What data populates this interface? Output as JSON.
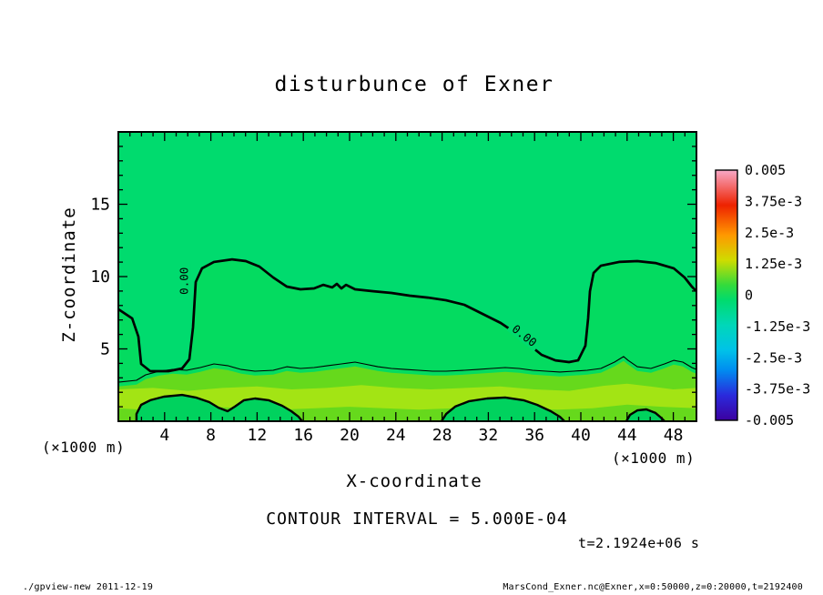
{
  "title": "disturbunce of Exner",
  "axes": {
    "x_label": "X-coordinate",
    "y_label": "Z-coordinate",
    "x_unit": "(×1000 m)",
    "y_unit": "(×1000 m)"
  },
  "annotations": {
    "contour_interval": "CONTOUR INTERVAL = 5.000E-04",
    "time_label": "t=2.1924e+06 s"
  },
  "footer": {
    "left": "./gpview-new  2011-12-19",
    "right": "MarsCond_Exner.nc@Exner,x=0:50000,z=0:20000,t=2192400"
  },
  "colorbar": {
    "labels": [
      "0.005",
      "3.75e-3",
      "2.5e-3",
      "1.25e-3",
      "0",
      "-1.25e-3",
      "-2.5e-3",
      "-3.75e-3",
      "-0.005"
    ],
    "gradient": [
      {
        "o": 0,
        "c": "#F8A9C8"
      },
      {
        "o": 0.14,
        "c": "#EE2200"
      },
      {
        "o": 0.26,
        "c": "#FF9900"
      },
      {
        "o": 0.36,
        "c": "#CFDC00"
      },
      {
        "o": 0.46,
        "c": "#33DB3C"
      },
      {
        "o": 0.52,
        "c": "#00DB6E"
      },
      {
        "o": 0.62,
        "c": "#00D7B9"
      },
      {
        "o": 0.72,
        "c": "#00C2E8"
      },
      {
        "o": 0.8,
        "c": "#008CF0"
      },
      {
        "o": 0.9,
        "c": "#2A2ADC"
      },
      {
        "o": 1,
        "c": "#3C00A0"
      }
    ]
  },
  "chart_data": {
    "type": "contour",
    "title": "disturbunce of Exner",
    "xlabel": "X-coordinate",
    "ylabel": "Z-coordinate",
    "x_unit": "(×1000 m)",
    "y_unit": "(×1000 m)",
    "x_range": [
      0,
      50
    ],
    "y_range": [
      0,
      20
    ],
    "x_ticks": [
      4,
      8,
      12,
      16,
      20,
      24,
      28,
      32,
      36,
      40,
      44,
      48
    ],
    "y_ticks": [
      5,
      10,
      15
    ],
    "field_range": [
      -0.005,
      0.005
    ],
    "contour_interval": 0.0005,
    "shade_levels": [
      -0.005,
      -0.00375,
      -0.0025,
      -0.00125,
      0,
      0.00125,
      0.0025,
      0.00375,
      0.005
    ],
    "time": "t=2.1924e+06 s",
    "fills": {
      "base": "#00DB6E",
      "below_zero": "#04DB60",
      "band1": "#66D91C",
      "band2": "#A3E414",
      "blob": "#00D25E"
    },
    "zero_contour": [
      [
        0,
        7.74
      ],
      [
        1.2,
        7.11
      ],
      [
        1.73,
        5.85
      ],
      [
        1.97,
        3.96
      ],
      [
        2.76,
        3.46
      ],
      [
        4.33,
        3.46
      ],
      [
        5.51,
        3.65
      ],
      [
        6.14,
        4.28
      ],
      [
        6.46,
        6.48
      ],
      [
        6.69,
        9.62
      ],
      [
        7.24,
        10.57
      ],
      [
        8.27,
        11.01
      ],
      [
        9.84,
        11.19
      ],
      [
        11.02,
        11.07
      ],
      [
        12.2,
        10.69
      ],
      [
        13.39,
        9.94
      ],
      [
        14.57,
        9.31
      ],
      [
        15.75,
        9.12
      ],
      [
        16.93,
        9.18
      ],
      [
        17.72,
        9.43
      ],
      [
        18.5,
        9.25
      ],
      [
        18.9,
        9.5
      ],
      [
        19.29,
        9.18
      ],
      [
        19.69,
        9.43
      ],
      [
        20.47,
        9.12
      ],
      [
        22.05,
        8.99
      ],
      [
        23.62,
        8.87
      ],
      [
        25.2,
        8.68
      ],
      [
        26.77,
        8.55
      ],
      [
        28.35,
        8.36
      ],
      [
        29.92,
        8.05
      ],
      [
        31.5,
        7.42
      ],
      [
        33.07,
        6.79
      ],
      [
        34.25,
        6.16
      ],
      [
        35.43,
        5.35
      ],
      [
        36.61,
        4.59
      ],
      [
        37.8,
        4.21
      ],
      [
        38.98,
        4.09
      ],
      [
        39.76,
        4.21
      ],
      [
        40.39,
        5.22
      ],
      [
        40.63,
        7.11
      ],
      [
        40.79,
        8.99
      ],
      [
        41.1,
        10.25
      ],
      [
        41.73,
        10.75
      ],
      [
        43.31,
        11.01
      ],
      [
        44.88,
        11.07
      ],
      [
        46.46,
        10.94
      ],
      [
        48.03,
        10.57
      ],
      [
        48.98,
        9.94
      ],
      [
        49.6,
        9.31
      ],
      [
        50,
        8.99
      ]
    ],
    "thin_contour": [
      [
        0,
        2.7
      ],
      [
        1.57,
        2.83
      ],
      [
        2.36,
        3.21
      ],
      [
        3.54,
        3.46
      ],
      [
        4.72,
        3.58
      ],
      [
        5.91,
        3.52
      ],
      [
        7.09,
        3.71
      ],
      [
        8.27,
        3.96
      ],
      [
        9.45,
        3.84
      ],
      [
        10.63,
        3.58
      ],
      [
        11.81,
        3.46
      ],
      [
        13.39,
        3.52
      ],
      [
        14.57,
        3.77
      ],
      [
        15.75,
        3.65
      ],
      [
        16.93,
        3.71
      ],
      [
        18.11,
        3.84
      ],
      [
        19.29,
        3.96
      ],
      [
        20.47,
        4.09
      ],
      [
        21.26,
        3.96
      ],
      [
        22.44,
        3.77
      ],
      [
        23.62,
        3.65
      ],
      [
        24.8,
        3.58
      ],
      [
        25.98,
        3.52
      ],
      [
        27.17,
        3.46
      ],
      [
        28.35,
        3.46
      ],
      [
        29.92,
        3.52
      ],
      [
        31.1,
        3.58
      ],
      [
        32.28,
        3.65
      ],
      [
        33.46,
        3.71
      ],
      [
        34.65,
        3.65
      ],
      [
        35.83,
        3.52
      ],
      [
        37.01,
        3.46
      ],
      [
        38.19,
        3.4
      ],
      [
        39.37,
        3.46
      ],
      [
        40.55,
        3.52
      ],
      [
        41.73,
        3.65
      ],
      [
        42.91,
        4.09
      ],
      [
        43.7,
        4.47
      ],
      [
        44.09,
        4.21
      ],
      [
        44.88,
        3.77
      ],
      [
        46.06,
        3.65
      ],
      [
        47.24,
        3.96
      ],
      [
        48.03,
        4.21
      ],
      [
        48.82,
        4.09
      ],
      [
        49.61,
        3.71
      ],
      [
        50,
        3.58
      ]
    ],
    "band2_top": [
      [
        0,
        2.2
      ],
      [
        3,
        2.3
      ],
      [
        6,
        2.1
      ],
      [
        9,
        2.3
      ],
      [
        12,
        2.4
      ],
      [
        15,
        2.2
      ],
      [
        18,
        2.3
      ],
      [
        21,
        2.5
      ],
      [
        24,
        2.3
      ],
      [
        27,
        2.2
      ],
      [
        30,
        2.3
      ],
      [
        33,
        2.4
      ],
      [
        36,
        2.2
      ],
      [
        39,
        2.1
      ],
      [
        42,
        2.45
      ],
      [
        44,
        2.6
      ],
      [
        46,
        2.4
      ],
      [
        48,
        2.2
      ],
      [
        50,
        2.3
      ]
    ],
    "band2_bottom": [
      [
        50,
        0.9
      ],
      [
        47,
        1.0
      ],
      [
        44,
        1.15
      ],
      [
        41,
        0.9
      ],
      [
        38,
        0.8
      ],
      [
        35,
        0.9
      ],
      [
        32,
        1.0
      ],
      [
        29,
        0.9
      ],
      [
        26,
        0.8
      ],
      [
        23,
        0.9
      ],
      [
        20,
        1.0
      ],
      [
        17,
        0.9
      ],
      [
        14,
        0.8
      ],
      [
        11,
        0.9
      ],
      [
        8,
        1.0
      ],
      [
        5,
        0.9
      ],
      [
        2,
        0.8
      ],
      [
        0,
        0.9
      ]
    ],
    "blobs": [
      [
        [
          1.57,
          0
        ],
        [
          1.57,
          0.5
        ],
        [
          1.97,
          1.13
        ],
        [
          2.76,
          1.45
        ],
        [
          3.94,
          1.7
        ],
        [
          5.51,
          1.82
        ],
        [
          6.69,
          1.64
        ],
        [
          7.87,
          1.32
        ],
        [
          8.66,
          0.94
        ],
        [
          9.45,
          0.69
        ],
        [
          10.08,
          1.01
        ],
        [
          10.87,
          1.45
        ],
        [
          11.81,
          1.57
        ],
        [
          12.99,
          1.45
        ],
        [
          14.17,
          1.07
        ],
        [
          14.96,
          0.69
        ],
        [
          15.59,
          0.31
        ],
        [
          15.9,
          0
        ]
      ],
      [
        [
          27.95,
          0
        ],
        [
          28.35,
          0.5
        ],
        [
          29.13,
          1.01
        ],
        [
          30.31,
          1.38
        ],
        [
          31.89,
          1.57
        ],
        [
          33.46,
          1.64
        ],
        [
          35.04,
          1.45
        ],
        [
          36.22,
          1.13
        ],
        [
          37.4,
          0.69
        ],
        [
          38.19,
          0.31
        ],
        [
          38.58,
          0
        ]
      ],
      [
        [
          43.94,
          0
        ],
        [
          44.25,
          0.44
        ],
        [
          44.88,
          0.75
        ],
        [
          45.67,
          0.82
        ],
        [
          46.46,
          0.57
        ],
        [
          46.93,
          0.25
        ],
        [
          47.24,
          0
        ]
      ]
    ],
    "contour_labels": [
      {
        "text": "0.00",
        "x": 5.7,
        "z": 9.7,
        "rot": -90
      },
      {
        "text": "0.00",
        "x": 35.1,
        "z": 5.9,
        "rot": 38
      }
    ]
  }
}
